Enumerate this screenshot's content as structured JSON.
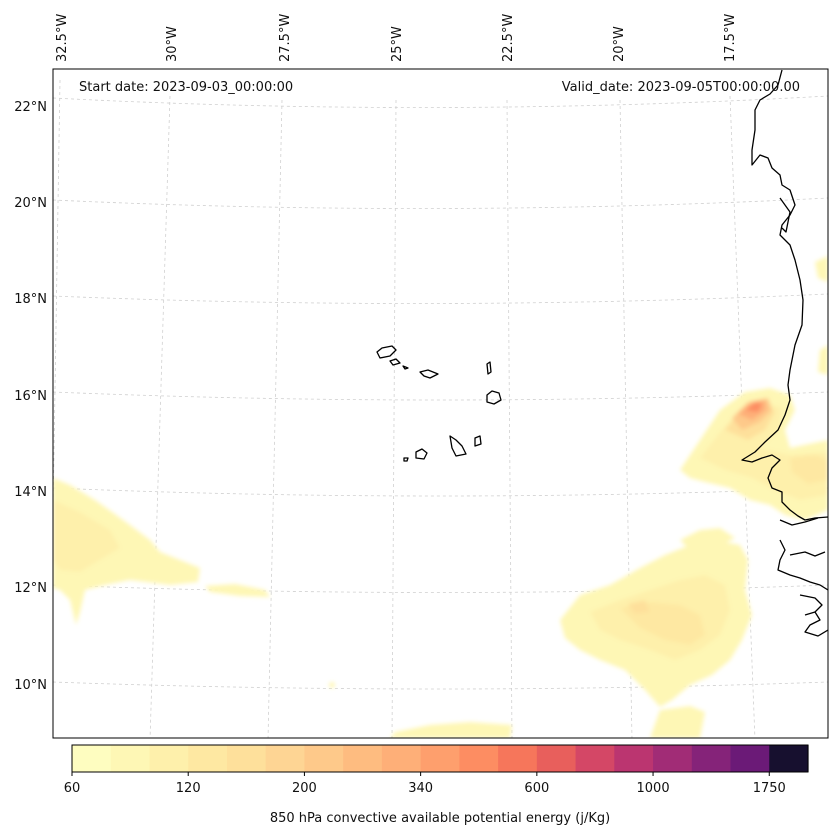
{
  "map": {
    "start_date": "Start date: 2023-09-03_00:00:00",
    "valid_date": "Valid_date: 2023-09-05T00:00:00.00",
    "lon_labels": [
      "32.5°W",
      "30°W",
      "27.5°W",
      "25°W",
      "22.5°W",
      "20°W",
      "17.5°W"
    ],
    "lat_labels": [
      "22°N",
      "20°N",
      "18°N",
      "16°N",
      "14°N",
      "12°N",
      "10°N"
    ],
    "field": "850 hPa convective available potential energy",
    "coastline_color": "#000000",
    "gridline_color": "#cccccc"
  },
  "colorbar": {
    "label": "850 hPa convective available potential energy (j/Kg)",
    "tick_labels": [
      "60",
      "120",
      "200",
      "340",
      "600",
      "1000",
      "1750"
    ],
    "colors": [
      "#fefdc0",
      "#fef7b5",
      "#fef0ab",
      "#fee8a2",
      "#fee09b",
      "#fed594",
      "#fec98a",
      "#febc80",
      "#feaf78",
      "#fe9f6d",
      "#fd8d62",
      "#f6765b",
      "#e85f5c",
      "#d44766",
      "#bb3570",
      "#a12c76",
      "#852379",
      "#6b1a77",
      "#17102f"
    ]
  }
}
